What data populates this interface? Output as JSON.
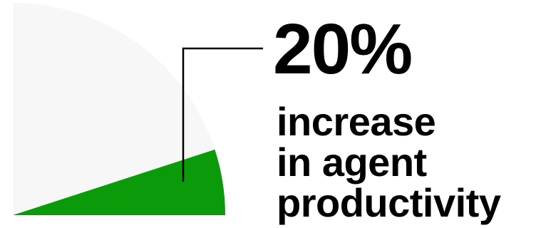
{
  "stat": {
    "value": "20%",
    "caption_lines": [
      "increase",
      "in agent",
      "productivity"
    ]
  },
  "colors": {
    "base_sector": "#f7f7f7",
    "highlight_sector": "#0a9a0a",
    "leader_line": "#000000",
    "text": "#000000"
  },
  "chart_data": {
    "type": "pie",
    "title": "",
    "slices": [
      {
        "label": "",
        "value": 20,
        "color": "#0a9a0a"
      },
      {
        "label": "",
        "value": 80,
        "color": "#f7f7f7"
      }
    ],
    "visible_arc": "quarter-circle",
    "grid": false,
    "legend": "none"
  }
}
